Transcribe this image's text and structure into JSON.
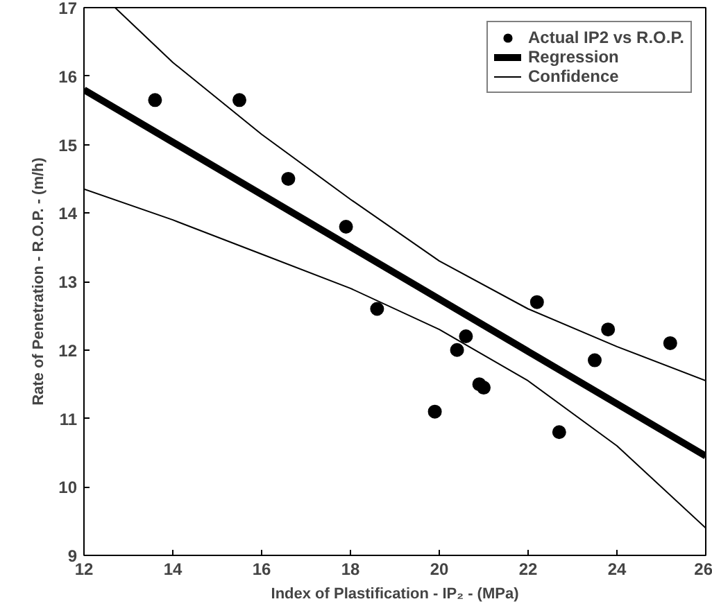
{
  "chart_data": {
    "type": "scatter",
    "xlabel": "Index of Plastification - IP₂ - (MPa)",
    "ylabel": "Rate of Penetration - R.O.P. - (m/h)",
    "xlim": [
      12,
      26
    ],
    "ylim": [
      9,
      17
    ],
    "xticks": [
      12,
      14,
      16,
      18,
      20,
      22,
      24,
      26
    ],
    "yticks": [
      9,
      10,
      11,
      12,
      13,
      14,
      15,
      16,
      17
    ],
    "grid": false,
    "legend": "top right",
    "series": [
      {
        "name": "Actual IP2 vs R.O.P.",
        "marker": "circle",
        "color": "#000000",
        "x": [
          13.6,
          15.5,
          16.6,
          17.9,
          18.6,
          19.9,
          20.4,
          20.6,
          20.9,
          21.0,
          22.2,
          22.7,
          23.5,
          23.8,
          25.2
        ],
        "values": [
          15.65,
          15.65,
          14.5,
          13.8,
          12.6,
          11.1,
          12.0,
          12.2,
          11.5,
          11.45,
          12.7,
          10.8,
          11.85,
          12.3,
          12.1
        ]
      },
      {
        "name": "Regression",
        "type": "line",
        "color": "#000000",
        "x": [
          12,
          26
        ],
        "values": [
          15.8,
          10.45
        ]
      },
      {
        "name": "Confidence",
        "type": "line",
        "color": "#000000",
        "x": [
          12.7,
          14,
          16,
          18,
          20,
          22,
          24,
          26
        ],
        "values": [
          17,
          16.2,
          15.15,
          14.2,
          13.3,
          12.6,
          12.05,
          11.55
        ]
      },
      {
        "type": "line",
        "color": "#000000",
        "x": [
          12,
          14,
          16,
          18,
          20,
          22,
          24,
          26
        ],
        "values": [
          14.35,
          13.9,
          13.4,
          12.9,
          12.3,
          11.55,
          10.6,
          9.4
        ]
      }
    ]
  }
}
